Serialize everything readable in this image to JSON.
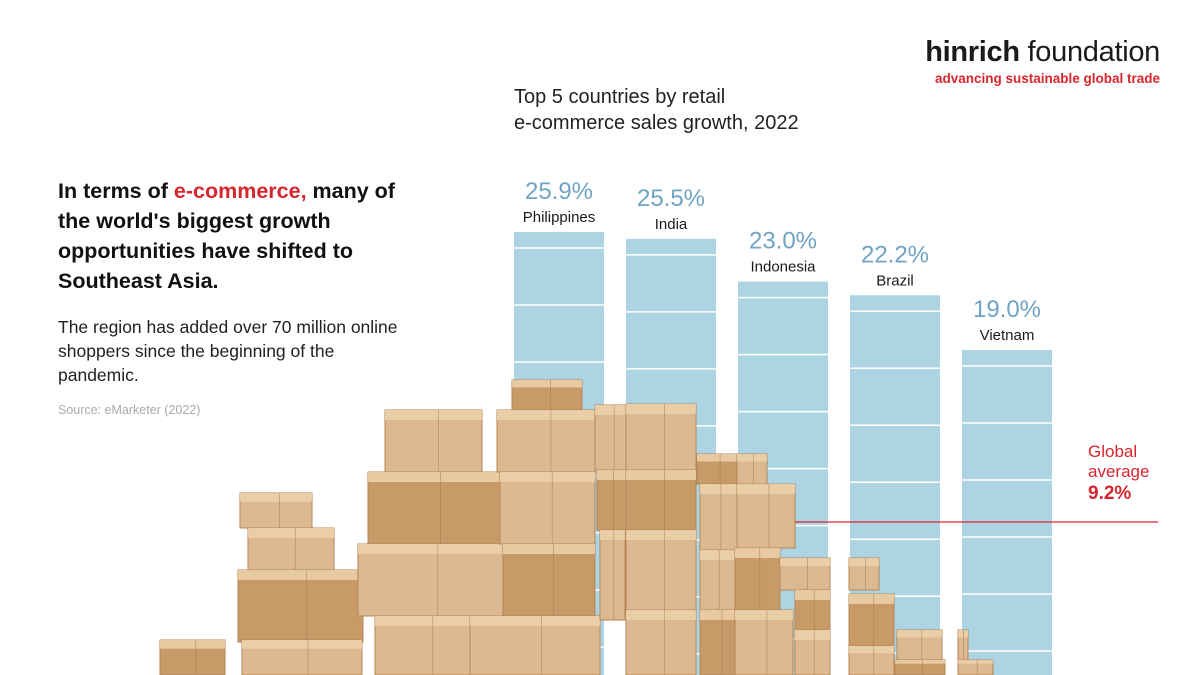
{
  "brand": {
    "name_bold": "hinrich",
    "name_rest": " foundation",
    "tagline": "advancing sustainable global trade"
  },
  "headline": {
    "pre": "In terms of ",
    "highlight": "e-commerce,",
    "post": " many of the world's biggest growth opportunities have shifted to Southeast Asia."
  },
  "subtext": "The region has added over 70 million online shoppers since the beginning of the pandemic.",
  "source": "Source: eMarketer (2022)",
  "colors": {
    "bar": "#acd4e2",
    "value_label": "#6fa4c4",
    "accent": "#d8262e",
    "box_light": "#dcb990",
    "box_dark": "#c89a68"
  },
  "chart_data": {
    "type": "bar",
    "title_line1": "Top 5 countries by retail",
    "title_line2": "e-commerce sales growth, 2022",
    "categories": [
      "Philippines",
      "India",
      "Indonesia",
      "Brazil",
      "Vietnam"
    ],
    "values": [
      25.9,
      25.5,
      23.0,
      22.2,
      19.0
    ],
    "value_labels": [
      "25.9%",
      "25.5%",
      "23.0%",
      "22.2%",
      "19.0%"
    ],
    "unit": "%",
    "reference_line": {
      "label_line1": "Global",
      "label_line2": "average",
      "value": 9.2,
      "value_label": "9.2%"
    },
    "legend": "none",
    "grid": false
  }
}
